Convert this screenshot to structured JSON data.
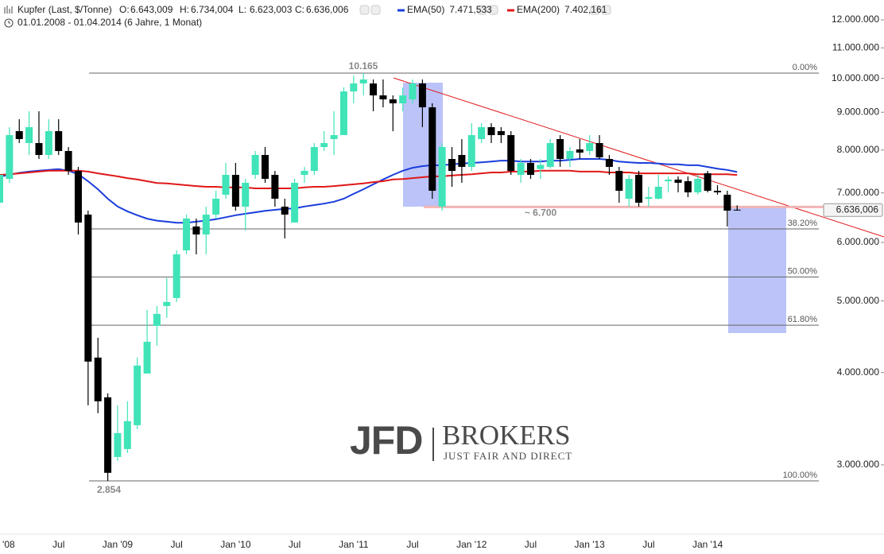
{
  "chart_data": {
    "type": "candlestick",
    "title": "Kupfer (Last, $/Tonne)",
    "subtitle": "01.01.2008 - 01.04.2014 (6 Jahre, 1 Monat)",
    "ohlc_readout": [
      {
        "name": "O:",
        "value": 6643009,
        "label": "6.643,009"
      },
      {
        "name": "H:",
        "value": 6734004,
        "label": "6.734,004"
      },
      {
        "name": "L:",
        "value": 6623003,
        "label": "6.623,003"
      },
      {
        "name": "C:",
        "value": 6636006,
        "label": "6.636,006"
      }
    ],
    "categories": [
      "Jan '08",
      null,
      null,
      null,
      null,
      null,
      "Jul",
      null,
      null,
      null,
      null,
      null,
      "Jan '09",
      null,
      null,
      null,
      null,
      null,
      "Jul",
      null,
      null,
      null,
      null,
      null,
      "Jan '10",
      null,
      null,
      null,
      null,
      null,
      "Jul",
      null,
      null,
      null,
      null,
      null,
      "Jan '11",
      null,
      null,
      null,
      null,
      null,
      "Jul",
      null,
      null,
      null,
      null,
      null,
      "Jan '12",
      null,
      null,
      null,
      null,
      null,
      "Jul",
      null,
      null,
      null,
      null,
      null,
      "Jan '13",
      null,
      null,
      null,
      null,
      null,
      "Jul",
      null,
      null,
      null,
      null,
      null,
      "Jan '14",
      null,
      null,
      null
    ],
    "open": [
      6790000,
      7314000,
      8485000,
      8176000,
      8176000,
      7878000,
      8485000,
      7976000,
      7497000,
      6543000,
      4191000,
      3703000,
      3075000,
      3152000,
      3395000,
      3988000,
      4627000,
      4922000,
      5046000,
      5853000,
      6305000,
      6150000,
      6543000,
      6961000,
      7405000,
      6707000,
      7405000,
      7878000,
      7405000,
      6707000,
      6383000,
      7405000,
      7497000,
      8075000,
      8278000,
      8381000,
      9603000,
      9844000,
      9844000,
      9485000,
      9368000,
      9253000,
      9368000,
      9844000,
      9139000,
      6707000,
      7781000,
      7878000,
      7591000,
      8278000,
      8591000,
      8485000,
      8381000,
      7405000,
      7685000,
      7541000,
      7591000,
      8278000,
      7781000,
      8016000,
      7976000,
      8176000,
      7781000,
      7497000,
      6875000,
      7405000,
      6875000,
      6875000,
      7260000,
      7296000,
      7260000,
      7012000,
      7442000,
      7047000,
      6961000,
      6643009
    ],
    "high": [
      7497000,
      8591000,
      8806000,
      9027000,
      9027000,
      8806000,
      8806000,
      8075000,
      7591000,
      6624000,
      4458000,
      3749000,
      3612000,
      3657000,
      4191000,
      4862000,
      4922000,
      5368000,
      5853000,
      6543000,
      6463000,
      6707000,
      7047000,
      7685000,
      7685000,
      7314000,
      7976000,
      8075000,
      7497000,
      6875000,
      7314000,
      7591000,
      8176000,
      8485000,
      9027000,
      9723000,
      10091000,
      10165000,
      9967000,
      9967000,
      9485000,
      9723000,
      9967000,
      9967000,
      9253000,
      8176000,
      8075000,
      8278000,
      8698000,
      8698000,
      8698000,
      8591000,
      8485000,
      7781000,
      7781000,
      7781000,
      8278000,
      8381000,
      8075000,
      8278000,
      8381000,
      8381000,
      7878000,
      7591000,
      7405000,
      7497000,
      7135000,
      7405000,
      7369000,
      7369000,
      7369000,
      7405000,
      7497000,
      7171000,
      7047000,
      6734004
    ],
    "low": [
      6707000,
      7224000,
      8176000,
      7878000,
      7781000,
      7781000,
      7878000,
      7405000,
      6150000,
      3612000,
      3524000,
      2854000,
      3037000,
      3114000,
      3354000,
      3988000,
      4349000,
      4743000,
      4984000,
      5781000,
      5781000,
      5781000,
      6463000,
      6875000,
      6624000,
      6227000,
      7314000,
      7224000,
      6707000,
      6075000,
      6383000,
      7224000,
      7405000,
      7976000,
      7878000,
      8381000,
      9253000,
      9485000,
      9027000,
      9139000,
      8485000,
      9027000,
      9253000,
      8591000,
      6875000,
      6624000,
      7135000,
      7224000,
      7497000,
      8176000,
      8176000,
      8176000,
      7405000,
      7224000,
      7314000,
      7314000,
      7550000,
      7591000,
      7591000,
      7781000,
      7878000,
      7781000,
      7405000,
      6790000,
      6707000,
      6707000,
      6707000,
      6860000,
      7012000,
      7012000,
      6909000,
      6961000,
      7012000,
      6961000,
      6305000,
      6623003
    ],
    "close": [
      7405000,
      8381000,
      8278000,
      8591000,
      7878000,
      8485000,
      7976000,
      7497000,
      6383000,
      4139000,
      3657000,
      2927000,
      3312000,
      3438000,
      4088000,
      4403000,
      4802000,
      4984000,
      5781000,
      6463000,
      6150000,
      6543000,
      6875000,
      7405000,
      6707000,
      7224000,
      7878000,
      7314000,
      6875000,
      6543000,
      7224000,
      7497000,
      8075000,
      8176000,
      8381000,
      9603000,
      9844000,
      9967000,
      9485000,
      9368000,
      9253000,
      9485000,
      9844000,
      9139000,
      7047000,
      8075000,
      7497000,
      7591000,
      8381000,
      8591000,
      8381000,
      8381000,
      7497000,
      7685000,
      7405000,
      7638000,
      8176000,
      7781000,
      7976000,
      7936000,
      8176000,
      7820000,
      7591000,
      7047000,
      7314000,
      6790000,
      6909000,
      7135000,
      7296000,
      7224000,
      7012000,
      7314000,
      7047000,
      7012000,
      6624000,
      6636006
    ],
    "up_color": "#40e4b8",
    "down_color": "#000000",
    "series": [
      {
        "name": "EMA(50)",
        "type": "line",
        "color": "#1a3ddc",
        "legend_value": {
          "value": 7471533,
          "label": "7.471,533"
        },
        "values": [
          7360000,
          7410000,
          7450000,
          7480000,
          7500000,
          7520000,
          7540000,
          7500000,
          7420000,
          7260000,
          7080000,
          6875000,
          6710000,
          6610000,
          6530000,
          6460000,
          6420000,
          6400000,
          6380000,
          6380000,
          6400000,
          6420000,
          6450000,
          6490000,
          6530000,
          6560000,
          6590000,
          6620000,
          6640000,
          6660000,
          6670000,
          6710000,
          6740000,
          6770000,
          6810000,
          6875000,
          6980000,
          7080000,
          7190000,
          7300000,
          7405000,
          7500000,
          7570000,
          7610000,
          7630000,
          7630000,
          7650000,
          7670000,
          7685000,
          7700000,
          7720000,
          7740000,
          7740000,
          7720000,
          7720000,
          7720000,
          7740000,
          7740000,
          7760000,
          7780000,
          7780000,
          7780000,
          7760000,
          7720000,
          7700000,
          7685000,
          7685000,
          7670000,
          7650000,
          7650000,
          7630000,
          7630000,
          7590000,
          7550000,
          7520000,
          7471533
        ]
      },
      {
        "name": "EMA(200)",
        "type": "line",
        "color": "#e01818",
        "legend_value": {
          "value": 7402161,
          "label": "7.402,161"
        },
        "values": [
          7405000,
          7420000,
          7440000,
          7460000,
          7480000,
          7500000,
          7500000,
          7500000,
          7500000,
          7480000,
          7440000,
          7405000,
          7370000,
          7330000,
          7300000,
          7260000,
          7220000,
          7210000,
          7190000,
          7170000,
          7150000,
          7135000,
          7135000,
          7120000,
          7120000,
          7120000,
          7100000,
          7100000,
          7100000,
          7100000,
          7100000,
          7120000,
          7135000,
          7135000,
          7150000,
          7170000,
          7190000,
          7210000,
          7240000,
          7260000,
          7300000,
          7310000,
          7330000,
          7350000,
          7370000,
          7370000,
          7390000,
          7405000,
          7420000,
          7440000,
          7460000,
          7460000,
          7480000,
          7480000,
          7480000,
          7500000,
          7500000,
          7500000,
          7500000,
          7480000,
          7480000,
          7480000,
          7460000,
          7460000,
          7460000,
          7440000,
          7440000,
          7440000,
          7440000,
          7440000,
          7440000,
          7420000,
          7420000,
          7420000,
          7420000,
          7402161
        ]
      }
    ],
    "log_scale": true,
    "ylim": [
      2418000,
      12767000
    ],
    "yticks": [
      {
        "value": 3000000,
        "label": "3.000.000"
      },
      {
        "value": 4000000,
        "label": "4.000.000"
      },
      {
        "value": 5000000,
        "label": "5.000.000"
      },
      {
        "value": 6000000,
        "label": "6.000.000"
      },
      {
        "value": 7000000,
        "label": "7.000.000"
      },
      {
        "value": 8000000,
        "label": "8.000.000"
      },
      {
        "value": 9000000,
        "label": "9.000.000"
      },
      {
        "value": 10000000,
        "label": "10.000.000"
      },
      {
        "value": 11000000,
        "label": "11.000.000"
      },
      {
        "value": 12000000,
        "label": "12.000.000"
      }
    ],
    "fibonacci": {
      "high": {
        "value": 10165000,
        "label": "10.165"
      },
      "low": {
        "value": 2854000,
        "label": "2.854"
      },
      "levels": [
        {
          "value": 0,
          "label": "0.00%"
        },
        {
          "value": 38.2,
          "label": "38.20%"
        },
        {
          "value": 50,
          "label": "50.00%"
        },
        {
          "value": 61.8,
          "label": "61.80%"
        },
        {
          "value": 100,
          "label": "100.00%"
        }
      ]
    },
    "support": {
      "value": 6700000,
      "label": "~ 6.700"
    },
    "watermark": {
      "brand": "JFD",
      "name": "BROKERS",
      "tagline": "JUST FAIR AND DIRECT"
    }
  }
}
